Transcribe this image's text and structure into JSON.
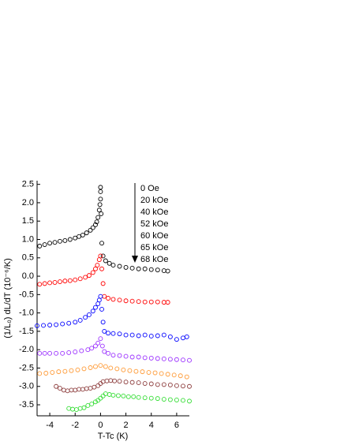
{
  "chart_data": {
    "type": "scatter",
    "xlabel": "T-Tc (K)",
    "ylabel": "(1/L₀) dL/dT (10⁻⁶/K)",
    "xlim": [
      -5,
      7
    ],
    "ylim": [
      -3.8,
      2.6
    ],
    "xticks": [
      -4,
      -2,
      0,
      2,
      4,
      6
    ],
    "yticks": [
      2.5,
      {
        "value": 2,
        "label": "2.0"
      },
      1.5,
      {
        "value": 1,
        "label": "1.0"
      },
      0.5,
      {
        "value": 0,
        "label": "0.0"
      },
      -0.5,
      {
        "value": -1,
        "label": "-1.0"
      },
      -1.5,
      {
        "value": -2,
        "label": "-2.0"
      },
      -2.5,
      {
        "value": -3,
        "label": "-3.0"
      },
      -3.5
    ],
    "series": [
      {
        "name": "0 Oe",
        "color": "#000000",
        "x": [
          -4.8,
          -4.4,
          -4,
          -3.6,
          -3.2,
          -2.8,
          -2.4,
          -2,
          -1.7,
          -1.4,
          -1.1,
          -0.8,
          -0.6,
          -0.4,
          -0.3,
          -0.2,
          -0.1,
          -0.05,
          0,
          0,
          0,
          0.05,
          0.1,
          0.2,
          0.4,
          0.7,
          1,
          1.5,
          2,
          2.5,
          3,
          3.5,
          4,
          4.5,
          5,
          5.3
        ],
        "values": [
          0.82,
          0.86,
          0.9,
          0.92,
          0.95,
          0.97,
          1.0,
          1.04,
          1.08,
          1.12,
          1.18,
          1.25,
          1.32,
          1.4,
          1.48,
          1.6,
          1.8,
          1.95,
          2.1,
          2.3,
          2.42,
          1.7,
          0.9,
          0.55,
          0.42,
          0.35,
          0.3,
          0.27,
          0.24,
          0.22,
          0.2,
          0.2,
          0.18,
          0.17,
          0.15,
          0.14
        ]
      },
      {
        "name": "20 kOe",
        "color": "#ff0000",
        "x": [
          -4.8,
          -4.4,
          -4,
          -3.6,
          -3.2,
          -2.8,
          -2.4,
          -2,
          -1.6,
          -1.2,
          -0.9,
          -0.6,
          -0.4,
          -0.25,
          -0.1,
          0,
          0.1,
          0.2,
          0.3,
          0.6,
          1,
          1.5,
          2,
          2.5,
          3,
          3.5,
          4,
          4.5,
          5,
          5.3
        ],
        "values": [
          -0.22,
          -0.2,
          -0.18,
          -0.17,
          -0.15,
          -0.13,
          -0.12,
          -0.1,
          -0.07,
          -0.03,
          0.02,
          0.1,
          0.2,
          0.3,
          0.45,
          0.55,
          0.2,
          -0.2,
          -0.55,
          -0.6,
          -0.63,
          -0.65,
          -0.67,
          -0.68,
          -0.69,
          -0.7,
          -0.7,
          -0.7,
          -0.71,
          -0.71
        ]
      },
      {
        "name": "40 kOe",
        "color": "#0000ff",
        "x": [
          -5,
          -4.5,
          -4,
          -3.5,
          -3,
          -2.5,
          -2,
          -1.6,
          -1.2,
          -0.9,
          -0.6,
          -0.4,
          -0.2,
          -0.1,
          0,
          0.1,
          0.2,
          0.3,
          0.6,
          1,
          1.5,
          2,
          2.5,
          3,
          3.5,
          4,
          4.5,
          5,
          5.5,
          6,
          6.5,
          6.8
        ],
        "values": [
          -1.35,
          -1.34,
          -1.33,
          -1.32,
          -1.3,
          -1.28,
          -1.25,
          -1.2,
          -1.12,
          -1.05,
          -0.95,
          -0.85,
          -0.75,
          -0.65,
          -0.55,
          -0.9,
          -1.25,
          -1.5,
          -1.55,
          -1.56,
          -1.57,
          -1.6,
          -1.6,
          -1.62,
          -1.6,
          -1.63,
          -1.62,
          -1.6,
          -1.65,
          -1.72,
          -1.68,
          -1.65
        ]
      },
      {
        "name": "52 kOe",
        "color": "#9b30ff",
        "x": [
          -4.8,
          -4.4,
          -4,
          -3.5,
          -3,
          -2.5,
          -2,
          -1.5,
          -1,
          -0.7,
          -0.4,
          -0.2,
          0,
          0.15,
          0.3,
          0.6,
          1,
          1.5,
          2,
          2.5,
          3,
          3.5,
          4,
          4.5,
          5,
          5.5,
          6,
          6.5,
          7
        ],
        "values": [
          -2.1,
          -2.1,
          -2.1,
          -2.1,
          -2.1,
          -2.08,
          -2.06,
          -2.03,
          -2.0,
          -1.96,
          -1.9,
          -1.82,
          -1.7,
          -1.9,
          -2.05,
          -2.1,
          -2.15,
          -2.16,
          -2.18,
          -2.2,
          -2.2,
          -2.22,
          -2.23,
          -2.24,
          -2.25,
          -2.26,
          -2.27,
          -2.28,
          -2.29
        ]
      },
      {
        "name": "60 kOe",
        "color": "#ff9933",
        "x": [
          -4.8,
          -4.3,
          -3.8,
          -3.3,
          -2.8,
          -2.3,
          -1.8,
          -1.3,
          -0.8,
          -0.4,
          0,
          0.4,
          0.8,
          1.3,
          1.8,
          2.3,
          2.8,
          3.3,
          3.8,
          4.3,
          4.8,
          5.3,
          5.8,
          6.3,
          6.8
        ],
        "values": [
          -2.65,
          -2.64,
          -2.62,
          -2.6,
          -2.59,
          -2.57,
          -2.55,
          -2.52,
          -2.49,
          -2.46,
          -2.43,
          -2.46,
          -2.5,
          -2.52,
          -2.55,
          -2.57,
          -2.59,
          -2.6,
          -2.62,
          -2.63,
          -2.65,
          -2.67,
          -2.69,
          -2.71,
          -2.74
        ]
      },
      {
        "name": "65 kOe",
        "color": "#8b3a3a",
        "x": [
          -3.5,
          -3.2,
          -2.9,
          -2.6,
          -2.3,
          -2,
          -1.7,
          -1.4,
          -1.1,
          -0.8,
          -0.5,
          -0.2,
          0,
          0.2,
          0.5,
          0.8,
          1.1,
          1.5,
          2,
          2.5,
          3,
          3.5,
          4,
          4.5,
          5,
          5.5,
          6,
          6.5,
          7
        ],
        "values": [
          -3.0,
          -3.05,
          -3.1,
          -3.12,
          -3.1,
          -3.1,
          -3.08,
          -3.08,
          -3.06,
          -3.05,
          -3.02,
          -2.98,
          -2.92,
          -2.87,
          -2.85,
          -2.84,
          -2.85,
          -2.86,
          -2.88,
          -2.89,
          -2.9,
          -2.92,
          -2.93,
          -2.95,
          -2.95,
          -2.96,
          -2.98,
          -2.99,
          -3.0
        ]
      },
      {
        "name": "68 kOe",
        "color": "#33dd33",
        "x": [
          -2.5,
          -2.2,
          -1.9,
          -1.6,
          -1.3,
          -1,
          -0.7,
          -0.4,
          -0.2,
          0,
          0.2,
          0.4,
          0.7,
          1,
          1.4,
          1.8,
          2.2,
          2.6,
          3,
          3.5,
          4,
          4.5,
          5,
          5.5,
          6,
          6.5,
          7
        ],
        "values": [
          -3.6,
          -3.62,
          -3.63,
          -3.6,
          -3.58,
          -3.52,
          -3.48,
          -3.42,
          -3.38,
          -3.32,
          -3.26,
          -3.2,
          -3.22,
          -3.24,
          -3.25,
          -3.26,
          -3.28,
          -3.28,
          -3.3,
          -3.31,
          -3.32,
          -3.33,
          -3.35,
          -3.36,
          -3.37,
          -3.38,
          -3.4
        ]
      }
    ]
  }
}
